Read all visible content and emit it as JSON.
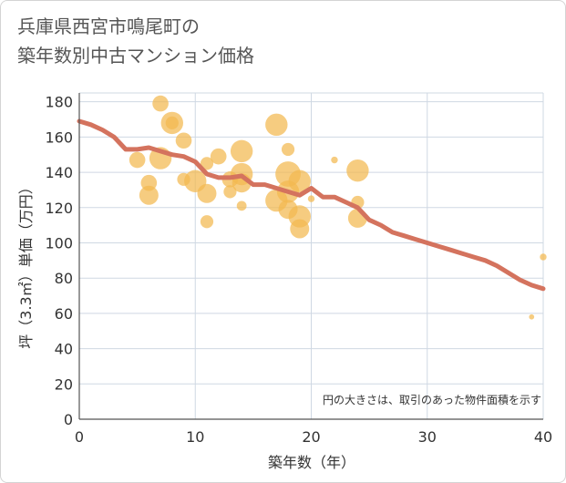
{
  "title": {
    "line1": "兵庫県西宮市鳴尾町の",
    "line2": "築年数別中古マンション価格"
  },
  "note": "円の大きさは、取引のあった物件面積を示す",
  "colors": {
    "line": "#d4735e",
    "bubble": "#f2b94f",
    "grid": "#cfd8e3",
    "axis": "#555555"
  },
  "chart_data": {
    "type": "scatter",
    "xlabel": "築年数（年）",
    "ylabel": "坪（3.3㎡）単価（万円）",
    "xlim": [
      0,
      40
    ],
    "ylim": [
      0,
      185
    ],
    "x_ticks": [
      0,
      10,
      20,
      30,
      40
    ],
    "y_ticks": [
      0,
      20,
      40,
      60,
      80,
      100,
      120,
      140,
      160,
      180
    ],
    "grid": true,
    "trend_line": {
      "x": [
        0,
        1,
        2,
        3,
        4,
        5,
        6,
        7,
        8,
        9,
        10,
        11,
        12,
        13,
        14,
        15,
        16,
        17,
        18,
        19,
        20,
        21,
        22,
        23,
        24,
        25,
        26,
        27,
        28,
        29,
        30,
        31,
        32,
        33,
        34,
        35,
        36,
        37,
        38,
        39,
        40
      ],
      "y": [
        169,
        167,
        164,
        160,
        153,
        153,
        154,
        152,
        150,
        149,
        146,
        139,
        137,
        137,
        138,
        133,
        133,
        131,
        129,
        127,
        131,
        126,
        126,
        123,
        120,
        113,
        110,
        106,
        104,
        102,
        100,
        98,
        96,
        94,
        92,
        90,
        87,
        83,
        79,
        76,
        74
      ]
    },
    "points": [
      {
        "x": 5,
        "y": 147,
        "size": 4
      },
      {
        "x": 6,
        "y": 134,
        "size": 4
      },
      {
        "x": 6,
        "y": 127,
        "size": 5
      },
      {
        "x": 7,
        "y": 179,
        "size": 4
      },
      {
        "x": 7,
        "y": 148,
        "size": 6
      },
      {
        "x": 8,
        "y": 168,
        "size": 6
      },
      {
        "x": 8,
        "y": 168,
        "size": 3
      },
      {
        "x": 9,
        "y": 158,
        "size": 4
      },
      {
        "x": 9,
        "y": 136,
        "size": 3
      },
      {
        "x": 10,
        "y": 135,
        "size": 6
      },
      {
        "x": 11,
        "y": 145,
        "size": 3
      },
      {
        "x": 11,
        "y": 128,
        "size": 5
      },
      {
        "x": 11,
        "y": 112,
        "size": 3
      },
      {
        "x": 12,
        "y": 149,
        "size": 4
      },
      {
        "x": 13,
        "y": 136,
        "size": 4
      },
      {
        "x": 13,
        "y": 129,
        "size": 3
      },
      {
        "x": 14,
        "y": 152,
        "size": 6
      },
      {
        "x": 14,
        "y": 139,
        "size": 6
      },
      {
        "x": 14,
        "y": 134,
        "size": 5
      },
      {
        "x": 14,
        "y": 121,
        "size": 2
      },
      {
        "x": 17,
        "y": 167,
        "size": 6
      },
      {
        "x": 17,
        "y": 124,
        "size": 6
      },
      {
        "x": 18,
        "y": 153,
        "size": 3
      },
      {
        "x": 18,
        "y": 139,
        "size": 7
      },
      {
        "x": 18,
        "y": 129,
        "size": 6
      },
      {
        "x": 18,
        "y": 119,
        "size": 5
      },
      {
        "x": 19,
        "y": 135,
        "size": 6
      },
      {
        "x": 19,
        "y": 115,
        "size": 6
      },
      {
        "x": 19,
        "y": 108,
        "size": 5
      },
      {
        "x": 20,
        "y": 125,
        "size": 1
      },
      {
        "x": 22,
        "y": 147,
        "size": 1
      },
      {
        "x": 24,
        "y": 141,
        "size": 6
      },
      {
        "x": 24,
        "y": 123,
        "size": 3
      },
      {
        "x": 24,
        "y": 114,
        "size": 5
      },
      {
        "x": 39,
        "y": 58,
        "size": 0.5
      },
      {
        "x": 40,
        "y": 92,
        "size": 1
      }
    ]
  }
}
